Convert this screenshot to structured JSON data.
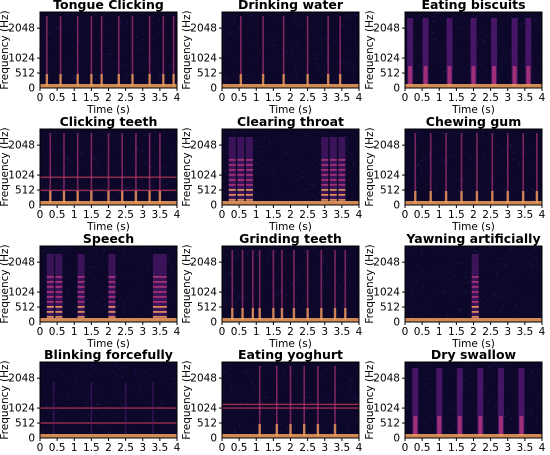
{
  "chart_data": [
    {
      "type": "heatmap",
      "title": "Tongue Clicking",
      "xlabel": "Time (s)",
      "ylabel": "Frequency (Hz)",
      "xlim": [
        0,
        4
      ],
      "ylim": [
        0,
        2600
      ],
      "x_ticks": [
        "0",
        "0.5",
        "1",
        "1.5",
        "2",
        "2.5",
        "3",
        "3.5",
        "4"
      ],
      "y_ticks": [
        "512",
        "1024",
        "2048"
      ],
      "events": [
        0.2,
        0.6,
        1.1,
        1.5,
        1.8,
        2.3,
        2.7,
        3.2,
        3.6,
        3.9
      ],
      "event_kind": "click",
      "bands": []
    },
    {
      "type": "heatmap",
      "title": "Drinking water",
      "xlabel": "Time (s)",
      "ylabel": "Frequency (Hz)",
      "xlim": [
        0,
        4
      ],
      "ylim": [
        0,
        2600
      ],
      "x_ticks": [
        "0",
        "0.5",
        "1",
        "1.5",
        "2",
        "2.5",
        "3",
        "3.5",
        "4"
      ],
      "y_ticks": [
        "512",
        "1024",
        "2048"
      ],
      "events": [
        0.55,
        1.2,
        1.8,
        2.5,
        3.1,
        3.45
      ],
      "event_kind": "click",
      "bands": []
    },
    {
      "type": "heatmap",
      "title": "Eating biscuits",
      "xlabel": "Time (s)",
      "ylabel": "Frequency (Hz)",
      "xlim": [
        0,
        4
      ],
      "ylim": [
        0,
        2600
      ],
      "x_ticks": [
        "0",
        "0.5",
        "1",
        "1.5",
        "2",
        "2.5",
        "3",
        "3.5",
        "4"
      ],
      "y_ticks": [
        "512",
        "1024",
        "2048"
      ],
      "events": [
        0.15,
        0.6,
        1.3,
        2.0,
        2.6,
        3.2,
        3.6
      ],
      "event_kind": "burst",
      "bands": []
    },
    {
      "type": "heatmap",
      "title": "Clicking teeth",
      "xlabel": "Time (s)",
      "ylabel": "Frequency (Hz)",
      "xlim": [
        0,
        4
      ],
      "ylim": [
        0,
        2600
      ],
      "x_ticks": [
        "0",
        "0.5",
        "1",
        "1.5",
        "2",
        "2.5",
        "3",
        "3.5",
        "4"
      ],
      "y_ticks": [
        "512",
        "1024",
        "2048"
      ],
      "events": [
        0.3,
        0.7,
        1.1,
        1.5,
        2.0,
        2.4,
        2.8,
        3.2,
        3.5
      ],
      "event_kind": "click",
      "bands": [
        950,
        500
      ]
    },
    {
      "type": "heatmap",
      "title": "Clearing throat",
      "xlabel": "Time (s)",
      "ylabel": "Frequency (Hz)",
      "xlim": [
        0,
        4
      ],
      "ylim": [
        0,
        2600
      ],
      "x_ticks": [
        "0",
        "0.5",
        "1",
        "1.5",
        "2",
        "2.5",
        "3",
        "3.5",
        "4"
      ],
      "y_ticks": [
        "512",
        "1024",
        "2048"
      ],
      "events": [
        0.3,
        0.55,
        0.8,
        3.0,
        3.25,
        3.5
      ],
      "event_kind": "harmonic",
      "bands": []
    },
    {
      "type": "heatmap",
      "title": "Chewing gum",
      "xlabel": "Time (s)",
      "ylabel": "Frequency (Hz)",
      "xlim": [
        0,
        4
      ],
      "ylim": [
        0,
        2600
      ],
      "x_ticks": [
        "0",
        "0.5",
        "1",
        "1.5",
        "2",
        "2.5",
        "3",
        "3.5",
        "4"
      ],
      "y_ticks": [
        "512",
        "1024",
        "2048"
      ],
      "events": [
        0.3,
        0.75,
        1.2,
        1.65,
        2.1,
        2.55,
        3.0,
        3.45,
        3.85
      ],
      "event_kind": "click",
      "bands": []
    },
    {
      "type": "heatmap",
      "title": "Speech",
      "xlabel": "Time (s)",
      "ylabel": "Frequency (Hz)",
      "xlim": [
        0,
        4
      ],
      "ylim": [
        0,
        2600
      ],
      "x_ticks": [
        "0",
        "0.5",
        "1",
        "1.5",
        "2",
        "2.5",
        "3",
        "3.5",
        "4"
      ],
      "y_ticks": [
        "512",
        "1024",
        "2048"
      ],
      "events": [
        0.3,
        0.55,
        1.2,
        2.1,
        3.4,
        3.6
      ],
      "event_kind": "harmonic",
      "bands": []
    },
    {
      "type": "heatmap",
      "title": "Grinding teeth",
      "xlabel": "Time (s)",
      "ylabel": "Frequency (Hz)",
      "xlim": [
        0,
        4
      ],
      "ylim": [
        0,
        2600
      ],
      "x_ticks": [
        "0",
        "0.5",
        "1",
        "1.5",
        "2",
        "2.5",
        "3",
        "3.5",
        "4"
      ],
      "y_ticks": [
        "512",
        "1024",
        "2048"
      ],
      "events": [
        0.3,
        0.6,
        0.9,
        1.1,
        1.5,
        1.75,
        2.1,
        2.5,
        2.9,
        3.3,
        3.6
      ],
      "event_kind": "click",
      "bands": []
    },
    {
      "type": "heatmap",
      "title": "Yawning artificially",
      "xlabel": "Time (s)",
      "ylabel": "Frequency (Hz)",
      "xlim": [
        0,
        4
      ],
      "ylim": [
        0,
        2600
      ],
      "x_ticks": [
        "0",
        "0.5",
        "1",
        "1.5",
        "2",
        "2.5",
        "3",
        "3.5",
        "4"
      ],
      "y_ticks": [
        "512",
        "1024",
        "2048"
      ],
      "events": [
        2.05
      ],
      "event_kind": "harmonic",
      "bands": []
    },
    {
      "type": "heatmap",
      "title": "Blinking forcefully",
      "xlabel": "Time (s)",
      "ylabel": "Frequency (Hz)",
      "xlim": [
        0,
        4
      ],
      "ylim": [
        0,
        2600
      ],
      "x_ticks": [
        "0",
        "0.5",
        "1",
        "1.5",
        "2",
        "2.5",
        "3",
        "3.5",
        "4"
      ],
      "y_ticks": [
        "512",
        "1024",
        "2048"
      ],
      "events": [
        0.4,
        1.5,
        2.5,
        3.3
      ],
      "event_kind": "faint",
      "bands": [
        1024,
        512
      ]
    },
    {
      "type": "heatmap",
      "title": "Eating yoghurt",
      "xlabel": "Time (s)",
      "ylabel": "Frequency (Hz)",
      "xlim": [
        0,
        4
      ],
      "ylim": [
        0,
        2600
      ],
      "x_ticks": [
        "0",
        "0.5",
        "1",
        "1.5",
        "2",
        "2.5",
        "3",
        "3.5",
        "4"
      ],
      "y_ticks": [
        "512",
        "1024",
        "2048"
      ],
      "events": [
        1.1,
        1.6,
        2.0,
        2.4,
        2.8,
        3.3
      ],
      "event_kind": "click",
      "bands": [
        1150,
        1024
      ]
    },
    {
      "type": "heatmap",
      "title": "Dry swallow",
      "xlabel": "Time (s)",
      "ylabel": "Frequency (Hz)",
      "xlim": [
        0,
        4
      ],
      "ylim": [
        0,
        2600
      ],
      "x_ticks": [
        "0",
        "0.5",
        "1",
        "1.5",
        "2",
        "2.5",
        "3",
        "3.5",
        "4"
      ],
      "y_ticks": [
        "512",
        "1024",
        "2048"
      ],
      "events": [
        0.3,
        1.0,
        1.6,
        2.2,
        2.8,
        3.4
      ],
      "event_kind": "burst",
      "bands": []
    }
  ],
  "colors": {
    "background": "#0d0829",
    "noise": "#1e1250",
    "low": "#5a1a7a",
    "mid": "#b5367a",
    "high": "#f3a15a",
    "band": "#c83a5a"
  }
}
